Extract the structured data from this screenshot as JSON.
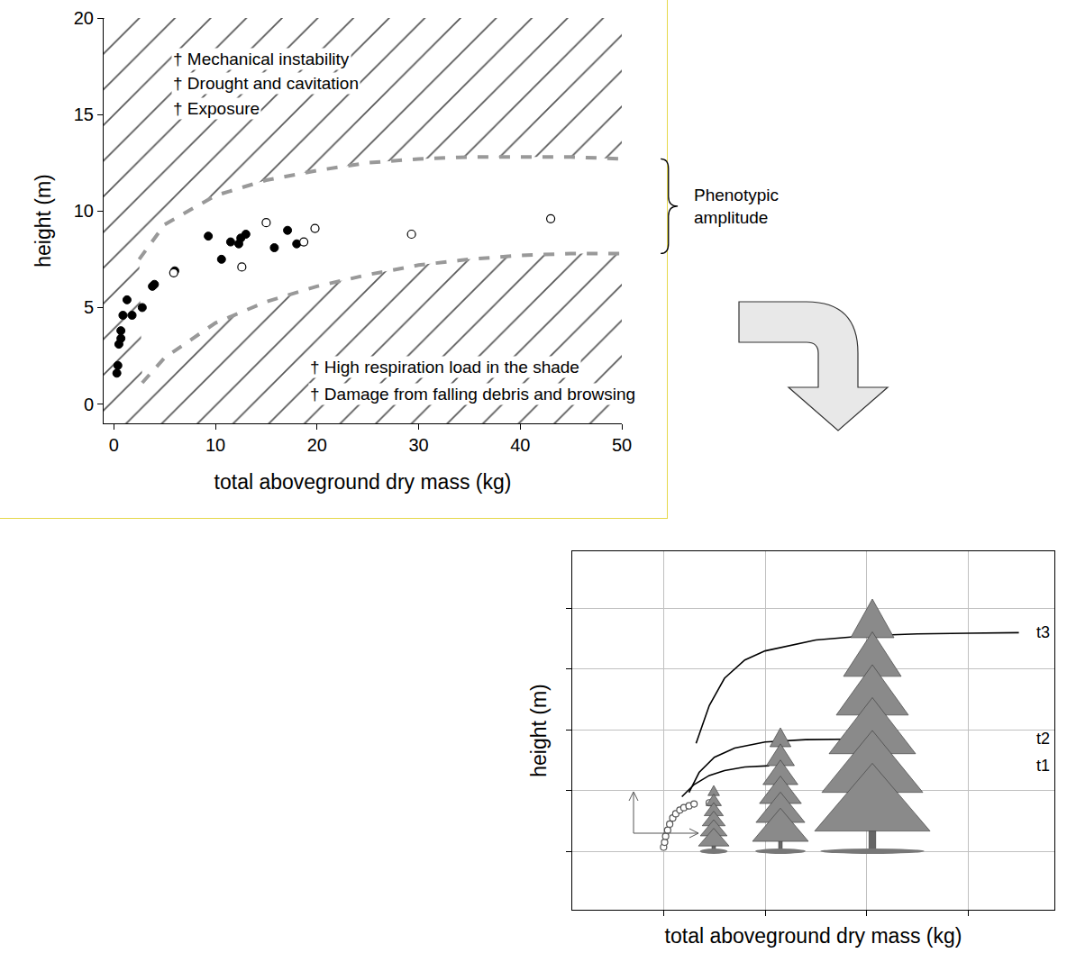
{
  "chart_data": [
    {
      "type": "scatter",
      "xlabel": "total aboveground dry mass (kg)",
      "ylabel": "height (m)",
      "xlim": [
        -1,
        50
      ],
      "ylim": [
        -1,
        20
      ],
      "xticks": [
        0,
        10,
        20,
        30,
        40,
        50
      ],
      "yticks": [
        0,
        5,
        10,
        15,
        20
      ],
      "grid": false,
      "annotations": {
        "upper": [
          "† Mechanical instability",
          "† Drought and cavitation",
          "† Exposure"
        ],
        "lower": [
          "† High respiration load in the shade",
          "† Damage from falling debris and browsing"
        ]
      },
      "bracket_label": "Phenotypic amplitude",
      "series": [
        {
          "type": "line",
          "line_style": "dashed",
          "color": "#999999",
          "x": [
            2.5,
            5,
            10,
            15,
            20,
            25,
            30,
            35,
            40,
            45,
            50
          ],
          "values": [
            7.5,
            9.3,
            10.8,
            11.6,
            12.1,
            12.5,
            12.7,
            12.8,
            12.8,
            12.8,
            12.7
          ]
        },
        {
          "type": "line",
          "line_style": "dashed",
          "color": "#999999",
          "x": [
            2.8,
            5,
            10,
            15,
            20,
            25,
            30,
            35,
            40,
            45,
            50
          ],
          "values": [
            1.1,
            2.4,
            4.2,
            5.3,
            6.1,
            6.7,
            7.2,
            7.5,
            7.7,
            7.8,
            7.8
          ]
        },
        {
          "type": "scatter",
          "marker": "filled",
          "color": "#000000",
          "x": [
            0.3,
            0.4,
            0.5,
            0.7,
            0.7,
            0.9,
            1.3,
            1.8,
            2.8,
            3.8,
            4.0,
            6.0,
            9.3,
            10.6,
            11.5,
            12.3,
            12.5,
            13.0,
            15.8,
            17.1,
            18.0
          ],
          "values": [
            1.6,
            2.0,
            3.1,
            3.4,
            3.8,
            4.6,
            5.4,
            4.6,
            5.0,
            6.1,
            6.2,
            6.9,
            8.7,
            7.5,
            8.4,
            8.3,
            8.6,
            8.8,
            8.1,
            9.0,
            8.3
          ]
        },
        {
          "type": "scatter",
          "marker": "open",
          "color": "#000000",
          "x": [
            5.9,
            12.6,
            15.0,
            18.7,
            19.8,
            29.3,
            43.0
          ],
          "values": [
            6.8,
            7.1,
            9.4,
            8.4,
            9.1,
            8.8,
            9.6
          ]
        }
      ]
    },
    {
      "type": "line",
      "xlabel": "total aboveground dry mass (kg)",
      "ylabel": "height (m)",
      "xlim": [
        -0.9,
        3.85
      ],
      "ylim": [
        -0.96,
        4.94
      ],
      "xticks": [
        0,
        1,
        2,
        3
      ],
      "yticks": [
        0,
        1,
        2,
        3,
        4
      ],
      "grid": true,
      "tick_labels": false,
      "series": [
        {
          "name": "t1",
          "type": "line",
          "color": "#000000",
          "x": [
            0.18,
            0.3,
            0.45,
            0.6,
            0.8,
            1.04
          ],
          "values": [
            0.9,
            1.1,
            1.25,
            1.33,
            1.39,
            1.41
          ]
        },
        {
          "name": "t2",
          "type": "line",
          "color": "#000000",
          "x": [
            0.25,
            0.35,
            0.5,
            0.7,
            1.0,
            1.4,
            1.93
          ],
          "values": [
            0.97,
            1.3,
            1.55,
            1.7,
            1.8,
            1.84,
            1.85
          ]
        },
        {
          "name": "t3",
          "type": "line",
          "color": "#000000",
          "x": [
            0.32,
            0.45,
            0.6,
            0.8,
            1.0,
            1.5,
            2.0,
            2.5,
            3.0,
            3.5
          ],
          "values": [
            1.78,
            2.4,
            2.85,
            3.15,
            3.3,
            3.48,
            3.55,
            3.58,
            3.59,
            3.6
          ]
        },
        {
          "type": "scatter",
          "marker": "open",
          "color": "#555555",
          "x": [
            0,
            0.01,
            0.02,
            0.04,
            0.06,
            0.09,
            0.12,
            0.16,
            0.2,
            0.25,
            0.3,
            0.45,
            0.5
          ],
          "values": [
            0.07,
            0.15,
            0.25,
            0.35,
            0.45,
            0.55,
            0.62,
            0.68,
            0.72,
            0.75,
            0.78,
            0.8,
            0.8
          ]
        }
      ]
    }
  ]
}
